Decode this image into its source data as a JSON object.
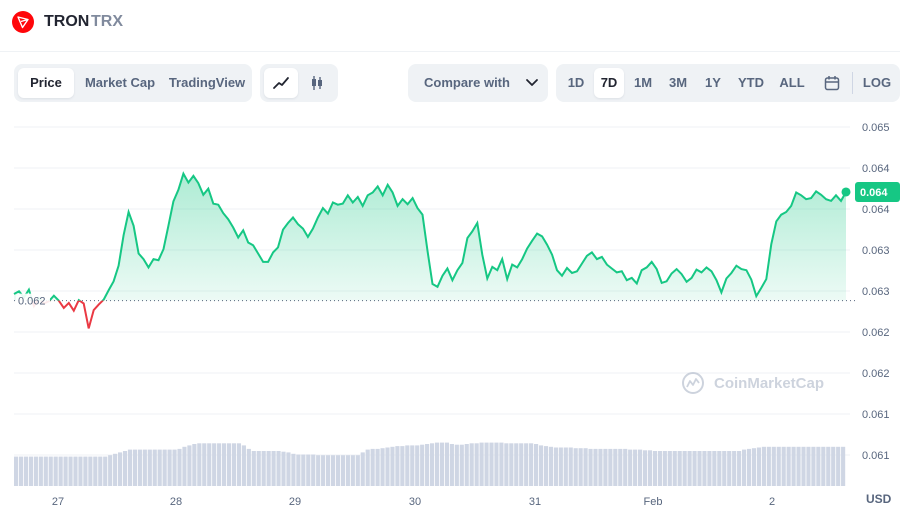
{
  "header": {
    "coin_name": "TRON",
    "coin_symbol": "TRX"
  },
  "toolbar": {
    "views": [
      "Price",
      "Market Cap",
      "TradingView"
    ],
    "active_view": "Price",
    "chart_modes": [
      "line-chart-icon",
      "candlestick-icon"
    ],
    "compare_label": "Compare with",
    "ranges": [
      "1D",
      "7D",
      "1M",
      "3M",
      "1Y",
      "YTD",
      "ALL"
    ],
    "active_range": "7D",
    "log_label": "LOG"
  },
  "colors": {
    "up": "#16c784",
    "down": "#ea3943",
    "volume": "#cfd6e4",
    "brand": "#ff060a"
  },
  "watermark": "CoinMarketCap",
  "currency": "USD",
  "chart_data": {
    "type": "area",
    "title": "",
    "xlabel": "",
    "ylabel": "",
    "x_ticks": [
      "27",
      "28",
      "29",
      "30",
      "31",
      "Feb",
      "2"
    ],
    "y_ticks": [
      "0.065",
      "0.064",
      "0.064",
      "0.063",
      "0.063",
      "0.062",
      "0.062",
      "0.061",
      "0.061"
    ],
    "ylim": [
      0.0607,
      0.0651
    ],
    "baseline": {
      "value": 0.06195,
      "label": "0.062"
    },
    "current": {
      "value": 0.06391,
      "label": "0.064"
    },
    "series": [
      {
        "x": [
          0,
          1,
          2,
          3,
          4,
          5,
          6,
          7,
          8,
          9,
          10,
          11,
          12,
          13,
          14,
          15,
          16,
          17,
          18,
          19,
          20,
          21,
          22,
          23,
          24,
          25,
          26,
          27,
          28,
          29,
          30,
          31,
          32,
          33,
          34,
          35,
          36,
          37,
          38,
          39,
          40,
          41,
          42,
          43,
          44,
          45,
          46,
          47,
          48,
          49,
          50,
          51,
          52,
          53,
          54,
          55,
          56,
          57,
          58,
          59,
          60,
          61,
          62,
          63,
          64,
          65,
          66,
          67,
          68,
          69,
          70,
          71,
          72,
          73,
          74,
          75,
          76,
          77,
          78,
          79,
          80,
          81,
          82,
          83,
          84,
          85,
          86,
          87,
          88,
          89,
          90,
          91,
          92,
          93,
          94,
          95,
          96,
          97,
          98,
          99,
          100,
          101,
          102,
          103,
          104,
          105,
          106,
          107,
          108,
          109,
          110,
          111,
          112,
          113,
          114,
          115,
          116,
          117,
          118,
          119,
          120,
          121,
          122,
          123,
          124,
          125,
          126,
          127,
          128,
          129,
          130,
          131,
          132,
          133,
          134,
          135,
          136,
          137,
          138,
          139,
          140,
          141,
          142,
          143,
          144,
          145,
          146,
          147,
          148,
          149,
          150,
          151,
          152,
          153,
          154,
          155,
          156,
          157,
          158,
          159,
          160,
          161,
          162,
          163,
          164,
          165,
          166,
          167
        ],
        "y": [
          0.06207,
          0.06212,
          0.06201,
          0.06215,
          0.06185,
          0.062,
          0.0619,
          0.06194,
          0.06204,
          0.06195,
          0.06182,
          0.06191,
          0.06177,
          0.06196,
          0.0619,
          0.06145,
          0.06178,
          0.06188,
          0.06197,
          0.06214,
          0.0623,
          0.06258,
          0.06313,
          0.06355,
          0.0633,
          0.0628,
          0.0627,
          0.06255,
          0.0627,
          0.06268,
          0.06288,
          0.0633,
          0.06374,
          0.06395,
          0.06424,
          0.06408,
          0.0642,
          0.06407,
          0.06386,
          0.06397,
          0.0637,
          0.06368,
          0.06353,
          0.06342,
          0.06327,
          0.06309,
          0.06322,
          0.063,
          0.06295,
          0.0628,
          0.06265,
          0.06265,
          0.06282,
          0.06291,
          0.06323,
          0.06335,
          0.06345,
          0.06333,
          0.06325,
          0.0631,
          0.06325,
          0.06345,
          0.06362,
          0.06352,
          0.06372,
          0.06368,
          0.0637,
          0.06385,
          0.06372,
          0.06382,
          0.06366,
          0.06385,
          0.0639,
          0.06401,
          0.06385,
          0.06404,
          0.0639,
          0.06366,
          0.06378,
          0.06369,
          0.0638,
          0.06362,
          0.0635,
          0.06285,
          0.06225,
          0.0622,
          0.0624,
          0.06253,
          0.06232,
          0.0625,
          0.06263,
          0.06308,
          0.0632,
          0.06335,
          0.06278,
          0.06235,
          0.06256,
          0.0625,
          0.0627,
          0.06234,
          0.0626,
          0.06255,
          0.0627,
          0.06289,
          0.06303,
          0.06316,
          0.06311,
          0.06296,
          0.06278,
          0.0625,
          0.0624,
          0.06254,
          0.06245,
          0.06248,
          0.06262,
          0.06276,
          0.06282,
          0.0627,
          0.06274,
          0.0626,
          0.06253,
          0.06246,
          0.06248,
          0.06232,
          0.06236,
          0.06226,
          0.0625,
          0.06255,
          0.06265,
          0.06252,
          0.06227,
          0.0623,
          0.06244,
          0.06252,
          0.06243,
          0.06229,
          0.06236,
          0.06251,
          0.06246,
          0.06255,
          0.06248,
          0.06232,
          0.0621,
          0.06235,
          0.06245,
          0.06258,
          0.06252,
          0.0625,
          0.06233,
          0.06203,
          0.06218,
          0.06234,
          0.06297,
          0.06338,
          0.0635,
          0.06355,
          0.06366,
          0.0639,
          0.06385,
          0.06378,
          0.0638,
          0.06392,
          0.06386,
          0.06378,
          0.06375,
          0.06385,
          0.06375,
          0.06391
        ]
      }
    ],
    "volume": [
      0.42,
      0.42,
      0.42,
      0.42,
      0.42,
      0.42,
      0.42,
      0.42,
      0.42,
      0.42,
      0.42,
      0.42,
      0.42,
      0.42,
      0.42,
      0.42,
      0.42,
      0.42,
      0.42,
      0.44,
      0.46,
      0.48,
      0.5,
      0.52,
      0.52,
      0.52,
      0.52,
      0.52,
      0.52,
      0.52,
      0.52,
      0.52,
      0.52,
      0.53,
      0.56,
      0.58,
      0.6,
      0.61,
      0.61,
      0.61,
      0.61,
      0.61,
      0.61,
      0.61,
      0.61,
      0.61,
      0.58,
      0.53,
      0.5,
      0.5,
      0.5,
      0.5,
      0.5,
      0.5,
      0.49,
      0.48,
      0.46,
      0.45,
      0.45,
      0.45,
      0.45,
      0.44,
      0.44,
      0.44,
      0.44,
      0.44,
      0.44,
      0.44,
      0.44,
      0.44,
      0.48,
      0.52,
      0.53,
      0.53,
      0.54,
      0.55,
      0.56,
      0.57,
      0.57,
      0.58,
      0.58,
      0.58,
      0.59,
      0.6,
      0.61,
      0.62,
      0.62,
      0.62,
      0.6,
      0.59,
      0.59,
      0.6,
      0.61,
      0.61,
      0.62,
      0.62,
      0.62,
      0.62,
      0.62,
      0.61,
      0.61,
      0.61,
      0.61,
      0.61,
      0.61,
      0.6,
      0.58,
      0.57,
      0.56,
      0.55,
      0.55,
      0.55,
      0.55,
      0.54,
      0.54,
      0.54,
      0.53,
      0.53,
      0.53,
      0.53,
      0.53,
      0.53,
      0.53,
      0.53,
      0.52,
      0.52,
      0.52,
      0.51,
      0.51,
      0.5,
      0.5,
      0.5,
      0.5,
      0.5,
      0.5,
      0.5,
      0.5,
      0.5,
      0.5,
      0.5,
      0.5,
      0.5,
      0.5,
      0.5,
      0.5,
      0.5,
      0.5,
      0.52,
      0.53,
      0.54,
      0.55,
      0.56,
      0.56,
      0.56,
      0.56,
      0.56,
      0.56,
      0.56,
      0.56,
      0.56,
      0.56,
      0.56,
      0.56,
      0.56,
      0.56,
      0.56,
      0.56,
      0.56
    ]
  }
}
